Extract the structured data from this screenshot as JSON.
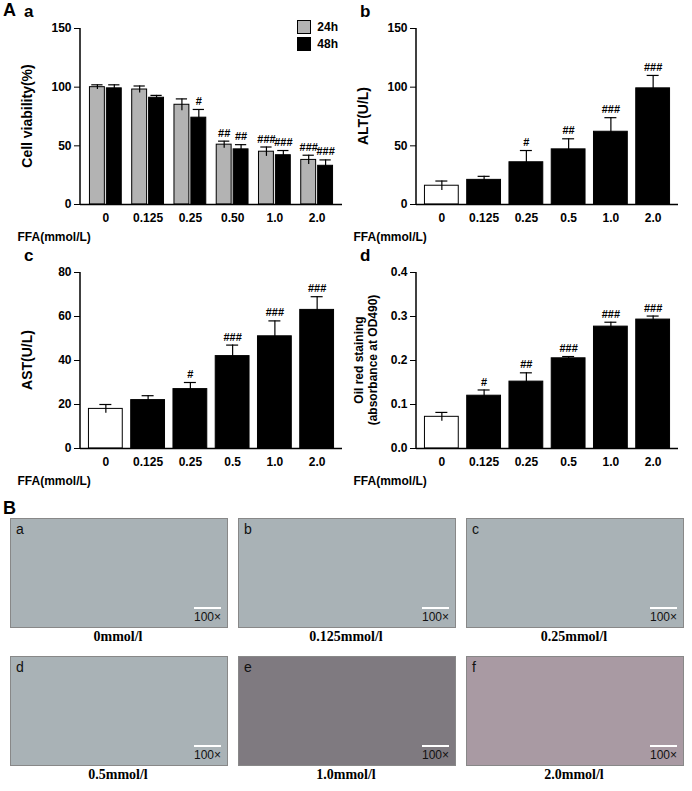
{
  "panel_labels": [
    "A",
    "B"
  ],
  "chart_data": [
    {
      "type": "bar",
      "title": "a",
      "x_label": "FFA(mmol/L)",
      "y_label": "Cell viability(%)",
      "categories": [
        "0",
        "0.125",
        "0.25",
        "0.50",
        "1.0",
        "2.0"
      ],
      "series": [
        {
          "name": "24h",
          "color": "#b3b3b3",
          "values": [
            100,
            98,
            85,
            51,
            45,
            38
          ],
          "errors": [
            2,
            3,
            5,
            3,
            4,
            4
          ],
          "significance": [
            null,
            null,
            null,
            "##",
            "###",
            "###"
          ]
        },
        {
          "name": "48h",
          "color": "#000000",
          "values": [
            99,
            91,
            74,
            47,
            42,
            33
          ],
          "errors": [
            3,
            2,
            7,
            4,
            4,
            5
          ],
          "significance": [
            null,
            null,
            "#",
            "##",
            "###",
            "###"
          ]
        }
      ],
      "ylim": [
        0,
        150
      ],
      "yticks": [
        0,
        50,
        100,
        150
      ],
      "legend": "top-right"
    },
    {
      "type": "bar",
      "title": "b",
      "x_label": "FFA(mmol/L)",
      "y_label": "ALT(U/L)",
      "categories": [
        "0",
        "0.125",
        "0.25",
        "0.5",
        "1.0",
        "2.0"
      ],
      "values": [
        16,
        21,
        36,
        47,
        62,
        99
      ],
      "errors": [
        4,
        3,
        10,
        9,
        12,
        11
      ],
      "significance": [
        null,
        null,
        "#",
        "##",
        "###",
        "###"
      ],
      "colors": [
        "#ffffff",
        "#000000",
        "#000000",
        "#000000",
        "#000000",
        "#000000"
      ],
      "ylim": [
        0,
        150
      ],
      "yticks": [
        0,
        50,
        100,
        150
      ]
    },
    {
      "type": "bar",
      "title": "c",
      "x_label": "FFA(mmol/L)",
      "y_label": "AST(U/L)",
      "categories": [
        "0",
        "0.125",
        "0.25",
        "0.5",
        "1.0",
        "2.0"
      ],
      "values": [
        18,
        22,
        27,
        42,
        51,
        63
      ],
      "errors": [
        2,
        2,
        3,
        5,
        7,
        6
      ],
      "significance": [
        null,
        null,
        "#",
        "###",
        "###",
        "###"
      ],
      "colors": [
        "#ffffff",
        "#000000",
        "#000000",
        "#000000",
        "#000000",
        "#000000"
      ],
      "ylim": [
        0,
        80
      ],
      "yticks": [
        0,
        20,
        40,
        60,
        80
      ]
    },
    {
      "type": "bar",
      "title": "d",
      "x_label": "FFA(mmol/L)",
      "y_label": "Oil red staining\n(absorbance at OD490)",
      "categories": [
        "0",
        "0.125",
        "0.25",
        "0.5",
        "1.0",
        "2.0"
      ],
      "values": [
        0.072,
        0.12,
        0.152,
        0.205,
        0.277,
        0.293
      ],
      "errors": [
        0.01,
        0.013,
        0.02,
        0.004,
        0.01,
        0.008
      ],
      "significance": [
        null,
        "#",
        "##",
        "###",
        "###",
        "###"
      ],
      "colors": [
        "#ffffff",
        "#000000",
        "#000000",
        "#000000",
        "#000000",
        "#000000"
      ],
      "ylim": [
        0,
        0.4
      ],
      "yticks": [
        {
          "value": 0,
          "label": "0.0"
        },
        0.1,
        0.2,
        0.3,
        0.4
      ]
    }
  ],
  "images": [
    {
      "label": "a",
      "scale": "100×",
      "caption": "0mmol/l"
    },
    {
      "label": "b",
      "scale": "100×",
      "caption": "0.125mmol/l"
    },
    {
      "label": "c",
      "scale": "100×",
      "caption": "0.25mmol/l"
    },
    {
      "label": "d",
      "scale": "100×",
      "caption": "0.5mmol/l"
    },
    {
      "label": "e",
      "scale": "100×",
      "caption": "1.0mmol/l"
    },
    {
      "label": "f",
      "scale": "100×",
      "caption": "2.0mmol/l"
    }
  ]
}
